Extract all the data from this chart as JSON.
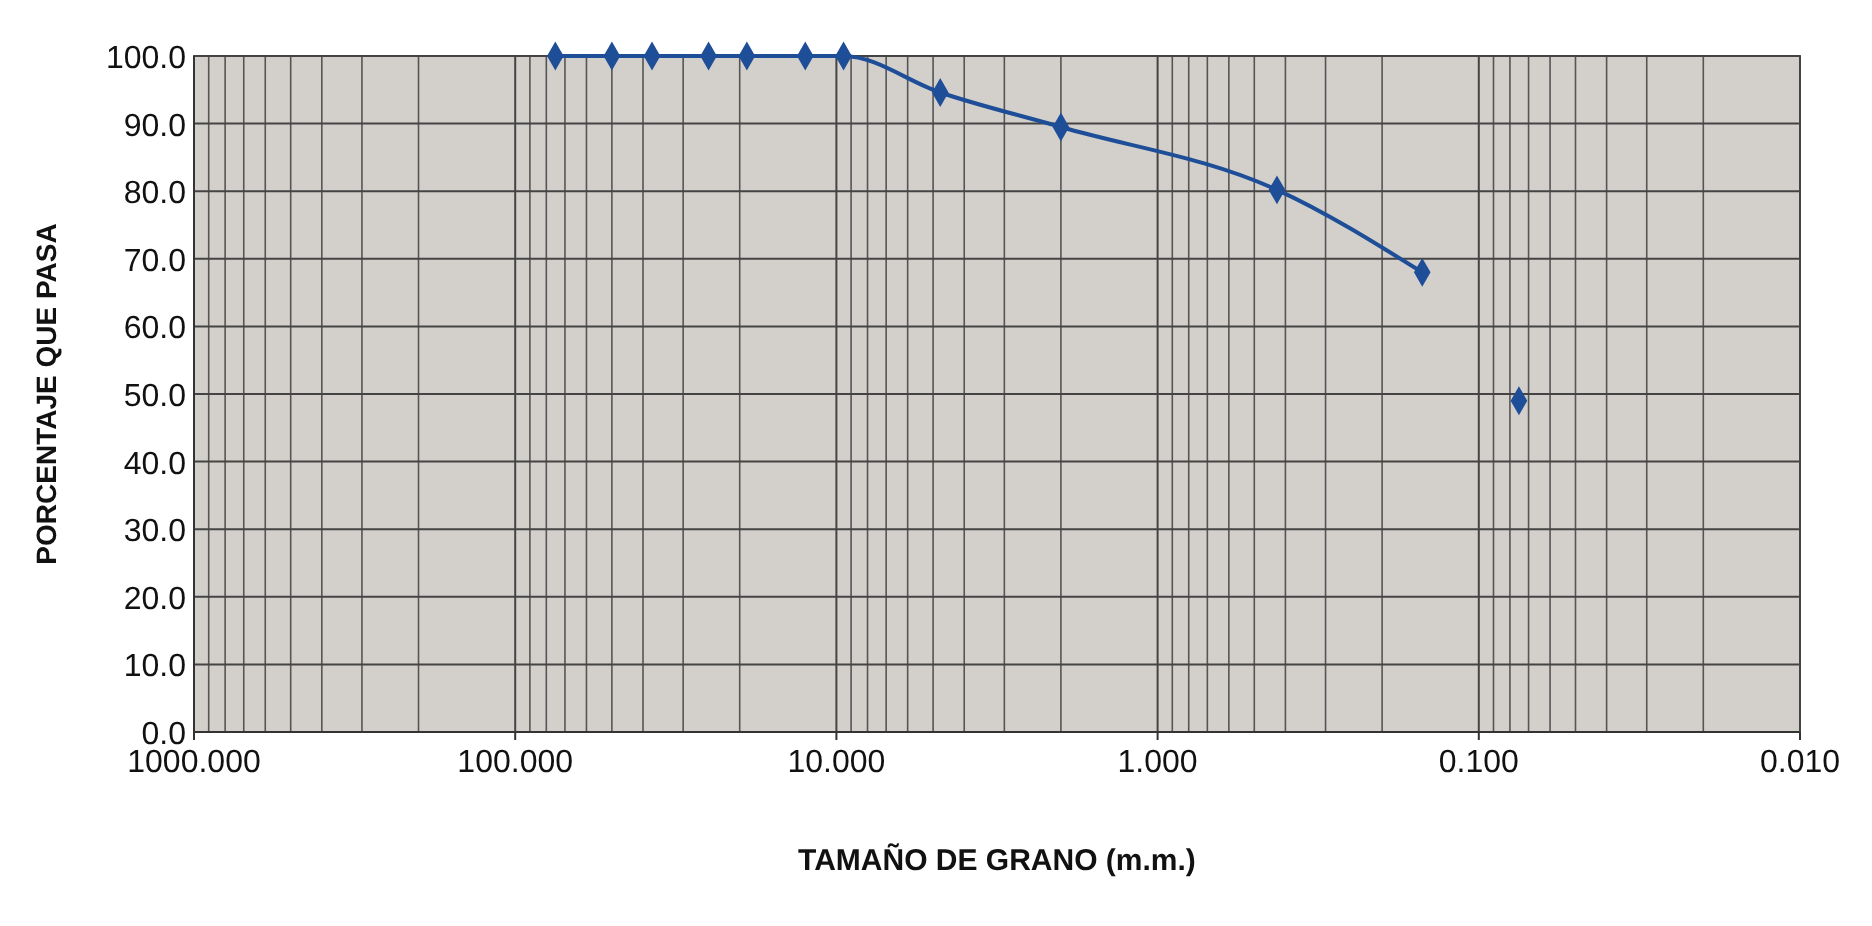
{
  "chart_data": {
    "type": "line",
    "xlabel": "TAMAÑO DE GRANO (m.m.)",
    "ylabel": "PORCENTAJE QUE PASA",
    "log": "x",
    "xlim": [
      1000,
      0.01
    ],
    "xticks": [
      {
        "value": 1000,
        "label": "1000.000"
      },
      {
        "value": 100,
        "label": "100.000"
      },
      {
        "value": 10,
        "label": "10.000"
      },
      {
        "value": 1,
        "label": "1.000"
      },
      {
        "value": 0.1,
        "label": "0.100"
      },
      {
        "value": 0.01,
        "label": "0.010"
      }
    ],
    "ylim": [
      0,
      100
    ],
    "yticks": [
      {
        "value": 0,
        "label": "0.0"
      },
      {
        "value": 10,
        "label": "10.0"
      },
      {
        "value": 20,
        "label": "20.0"
      },
      {
        "value": 30,
        "label": "30.0"
      },
      {
        "value": 40,
        "label": "40.0"
      },
      {
        "value": 50,
        "label": "50.0"
      },
      {
        "value": 60,
        "label": "60.0"
      },
      {
        "value": 70,
        "label": "70.0"
      },
      {
        "value": 80,
        "label": "80.0"
      },
      {
        "value": 90,
        "label": "90.0"
      },
      {
        "value": 100,
        "label": "100.0"
      }
    ],
    "grid": true,
    "marker": "diamond",
    "line_style": "solid",
    "series": [
      {
        "color": "#1f4e99",
        "x": [
          75,
          50,
          37.5,
          25,
          19,
          12.5,
          9.5,
          4.75,
          2.0,
          0.425,
          0.15
        ],
        "values": [
          100,
          100,
          100,
          100,
          100,
          100,
          100,
          94.6,
          89.5,
          80.2,
          68
        ]
      },
      {
        "type": "scatter",
        "color": "#1f4e99",
        "x": [
          0.075
        ],
        "values": [
          49
        ]
      }
    ]
  }
}
